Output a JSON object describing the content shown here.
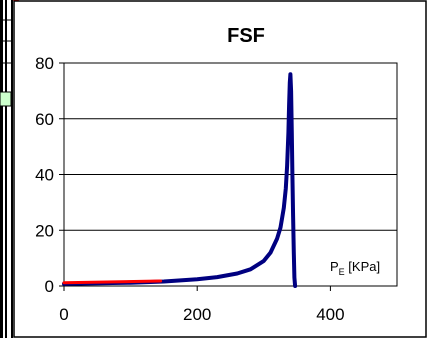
{
  "chart_data": {
    "type": "line",
    "title": "FSF",
    "xlabel": "P",
    "xlabel_sub": "E",
    "xlabel_unit": " [KPa]",
    "ylabel": "",
    "xlim": [
      0,
      500
    ],
    "ylim": [
      0,
      80
    ],
    "xticks": [
      0,
      200,
      400
    ],
    "yticks": [
      0,
      20,
      40,
      60,
      80
    ],
    "grid": "horizontal",
    "series": [
      {
        "color": "#000080",
        "x": [
          0,
          50,
          100,
          150,
          200,
          230,
          260,
          280,
          300,
          310,
          320,
          325,
          330,
          333,
          335,
          337,
          338,
          339,
          340,
          341,
          342,
          343,
          344,
          345,
          346,
          347
        ],
        "y": [
          0.8,
          1.0,
          1.2,
          1.6,
          2.4,
          3.2,
          4.5,
          6.0,
          9.0,
          12.0,
          17.0,
          21.0,
          28.0,
          35.0,
          43.0,
          55.0,
          65.0,
          73.0,
          76.0,
          70.0,
          55.0,
          40.0,
          25.0,
          12.0,
          3.0,
          0.0
        ]
      },
      {
        "color": "#ff0000",
        "x": [
          0,
          145
        ],
        "y": [
          1.2,
          1.8
        ]
      }
    ]
  }
}
